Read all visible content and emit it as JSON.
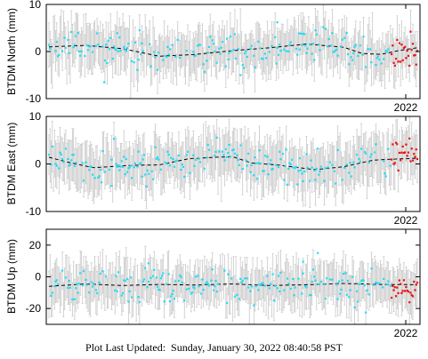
{
  "footer": {
    "label": "Plot Last Updated:",
    "timestamp": "Sunday, January 30, 2022 08:40:58 PST"
  },
  "colors": {
    "primary_points": "#22ddf5",
    "recent_points": "#ee1111",
    "error_bars": "#c8c8c8",
    "trend_line": "#000000"
  },
  "chart_data": [
    {
      "type": "scatter",
      "name": "north",
      "ylabel": "BTDM North (mm)",
      "ylim": [
        -10,
        10
      ],
      "yticks": [
        -10,
        0,
        10
      ],
      "x_tick_label": "2022",
      "trend": [
        [
          0.0,
          1.0
        ],
        [
          0.1,
          1.3
        ],
        [
          0.2,
          0.6
        ],
        [
          0.3,
          -1.0
        ],
        [
          0.4,
          -0.6
        ],
        [
          0.5,
          0.2
        ],
        [
          0.6,
          0.8
        ],
        [
          0.7,
          1.6
        ],
        [
          0.8,
          0.9
        ],
        [
          0.85,
          -0.4
        ],
        [
          0.9,
          -0.6
        ],
        [
          0.95,
          0.2
        ],
        [
          1.0,
          0.8
        ]
      ],
      "scatter_sd": 1.9,
      "error_bar_half": 4.2,
      "recent_offset": -1.2,
      "outliers": [
        [
          0.15,
          -6.5
        ],
        [
          0.52,
          -5.0
        ],
        [
          0.62,
          6.2
        ]
      ]
    },
    {
      "type": "scatter",
      "name": "east",
      "ylabel": "BTDM East (mm)",
      "ylim": [
        -10,
        10
      ],
      "yticks": [
        -10,
        0,
        10
      ],
      "x_tick_label": "2022",
      "trend": [
        [
          0.0,
          1.4
        ],
        [
          0.05,
          0.4
        ],
        [
          0.12,
          -0.8
        ],
        [
          0.22,
          -0.3
        ],
        [
          0.3,
          -0.2
        ],
        [
          0.38,
          1.1
        ],
        [
          0.45,
          1.4
        ],
        [
          0.5,
          1.5
        ],
        [
          0.55,
          0.2
        ],
        [
          0.62,
          -0.2
        ],
        [
          0.72,
          -1.2
        ],
        [
          0.8,
          -0.6
        ],
        [
          0.88,
          0.8
        ],
        [
          0.93,
          1.0
        ],
        [
          1.0,
          1.2
        ]
      ],
      "scatter_sd": 1.9,
      "error_bar_half": 4.5,
      "recent_offset": 1.4,
      "outliers": [
        [
          0.17,
          -4.6
        ],
        [
          0.52,
          3.9
        ],
        [
          0.73,
          3.2
        ]
      ]
    },
    {
      "type": "scatter",
      "name": "up",
      "ylabel": "BTDM Up (mm)",
      "ylim": [
        -30,
        30
      ],
      "yticks": [
        -20,
        0,
        20
      ],
      "x_tick_label": "2022",
      "trend": [
        [
          0.0,
          -6
        ],
        [
          0.1,
          -4.5
        ],
        [
          0.2,
          -5.5
        ],
        [
          0.3,
          -4.8
        ],
        [
          0.4,
          -5.2
        ],
        [
          0.5,
          -4.5
        ],
        [
          0.6,
          -5.5
        ],
        [
          0.7,
          -5
        ],
        [
          0.8,
          -4.2
        ],
        [
          0.9,
          -4.8
        ],
        [
          1.0,
          -5
        ]
      ],
      "scatter_sd": 5.2,
      "error_bar_half": 12,
      "recent_offset": -3,
      "outliers": [
        [
          0.27,
          8.5
        ],
        [
          0.69,
          9.5
        ],
        [
          0.73,
          15
        ]
      ]
    }
  ]
}
